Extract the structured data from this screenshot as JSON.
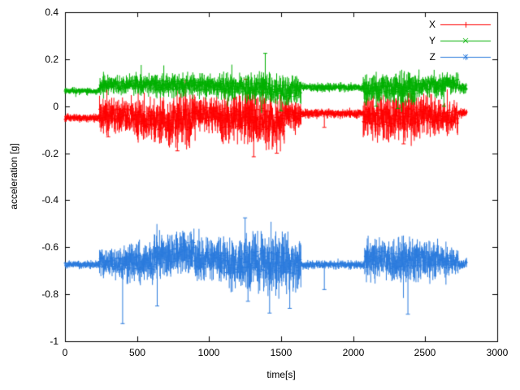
{
  "chart_data": {
    "type": "line",
    "style": "errorbars",
    "title": "",
    "xlabel": "time[s]",
    "ylabel": "acceleration [g]",
    "xlim": [
      0,
      3000
    ],
    "ylim": [
      -1,
      0.4
    ],
    "xticks": [
      "0",
      "500",
      "1000",
      "1500",
      "2000",
      "2500",
      "3000"
    ],
    "yticks": [
      "0.4",
      "0.2",
      "0",
      "-0.2",
      "-0.4",
      "-0.6",
      "-0.8",
      "-1"
    ],
    "grid": false,
    "background": "#ffffff",
    "axis_color": "#000000",
    "legend_position": "top-right-inside",
    "segments_format": "[t_start_s, t_end_s, mean_g, noise_halfwidth_g]",
    "outliers_format": "[t_s, value_g]",
    "series": [
      {
        "name": "X",
        "color": "#ff0000",
        "marker": "plus",
        "segments": [
          [
            0,
            240,
            -0.05,
            0.012
          ],
          [
            240,
            430,
            -0.04,
            0.05
          ],
          [
            430,
            620,
            -0.05,
            0.06
          ],
          [
            620,
            760,
            -0.06,
            0.07
          ],
          [
            760,
            900,
            -0.055,
            0.075
          ],
          [
            900,
            1080,
            -0.035,
            0.05
          ],
          [
            1080,
            1250,
            -0.05,
            0.07
          ],
          [
            1250,
            1420,
            -0.06,
            0.085
          ],
          [
            1420,
            1530,
            -0.07,
            0.08
          ],
          [
            1530,
            1640,
            -0.04,
            0.045
          ],
          [
            1640,
            2070,
            -0.032,
            0.014
          ],
          [
            2070,
            2250,
            -0.05,
            0.065
          ],
          [
            2250,
            2460,
            -0.045,
            0.07
          ],
          [
            2460,
            2620,
            -0.04,
            0.06
          ],
          [
            2620,
            2730,
            -0.045,
            0.05
          ],
          [
            2730,
            2790,
            -0.03,
            0.015
          ]
        ],
        "outliers": [
          [
            300,
            -0.13
          ],
          [
            780,
            -0.19
          ],
          [
            1255,
            0.115
          ],
          [
            1310,
            -0.215
          ],
          [
            1470,
            -0.2
          ],
          [
            1800,
            -0.09
          ],
          [
            2350,
            -0.16
          ]
        ]
      },
      {
        "name": "Y",
        "color": "#00b000",
        "marker": "x",
        "segments": [
          [
            0,
            240,
            0.065,
            0.01
          ],
          [
            240,
            430,
            0.09,
            0.028
          ],
          [
            430,
            620,
            0.092,
            0.032
          ],
          [
            620,
            900,
            0.09,
            0.035
          ],
          [
            900,
            1080,
            0.085,
            0.035
          ],
          [
            1080,
            1250,
            0.08,
            0.04
          ],
          [
            1250,
            1430,
            0.075,
            0.045
          ],
          [
            1430,
            1640,
            0.065,
            0.045
          ],
          [
            1640,
            2070,
            0.08,
            0.013
          ],
          [
            2070,
            2250,
            0.075,
            0.045
          ],
          [
            2250,
            2460,
            0.08,
            0.048
          ],
          [
            2460,
            2620,
            0.09,
            0.035
          ],
          [
            2620,
            2730,
            0.095,
            0.032
          ],
          [
            2730,
            2790,
            0.08,
            0.018
          ]
        ],
        "outliers": [
          [
            1390,
            0.225
          ],
          [
            1500,
            -0.02
          ],
          [
            2160,
            0.0
          ],
          [
            2310,
            -0.01
          ],
          [
            2630,
            0.0
          ]
        ]
      },
      {
        "name": "Z",
        "color": "#2b7bdd",
        "marker": "star",
        "segments": [
          [
            0,
            240,
            -0.675,
            0.012
          ],
          [
            240,
            430,
            -0.67,
            0.045
          ],
          [
            430,
            620,
            -0.66,
            0.06
          ],
          [
            620,
            760,
            -0.64,
            0.065
          ],
          [
            760,
            900,
            -0.62,
            0.07
          ],
          [
            900,
            1080,
            -0.655,
            0.06
          ],
          [
            1080,
            1250,
            -0.67,
            0.075
          ],
          [
            1250,
            1430,
            -0.665,
            0.085
          ],
          [
            1430,
            1640,
            -0.67,
            0.08
          ],
          [
            1640,
            2080,
            -0.675,
            0.013
          ],
          [
            2080,
            2250,
            -0.65,
            0.06
          ],
          [
            2250,
            2460,
            -0.655,
            0.065
          ],
          [
            2460,
            2620,
            -0.65,
            0.055
          ],
          [
            2620,
            2730,
            -0.66,
            0.045
          ],
          [
            2730,
            2790,
            -0.67,
            0.018
          ]
        ],
        "outliers": [
          [
            400,
            -0.925
          ],
          [
            640,
            -0.85
          ],
          [
            1250,
            -0.475
          ],
          [
            1270,
            -0.83
          ],
          [
            1420,
            -0.88
          ],
          [
            1560,
            -0.86
          ],
          [
            1800,
            -0.78
          ],
          [
            2380,
            -0.885
          ]
        ]
      }
    ]
  }
}
